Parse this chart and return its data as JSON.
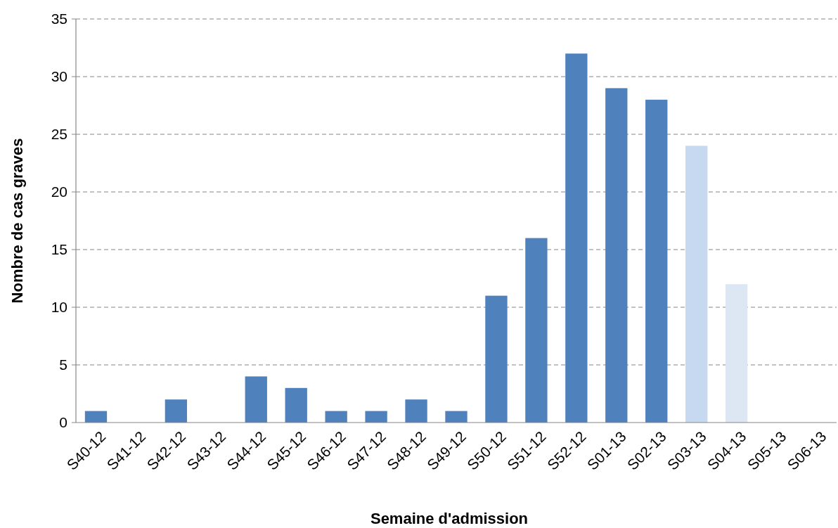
{
  "chart_data": {
    "type": "bar",
    "xlabel": "Semaine d'admission",
    "ylabel": "Nombre de cas graves",
    "categories": [
      "S40-12",
      "S41-12",
      "S42-12",
      "S43-12",
      "S44-12",
      "S45-12",
      "S46-12",
      "S47-12",
      "S48-12",
      "S49-12",
      "S50-12",
      "S51-12",
      "S52-12",
      "S01-13",
      "S02-13",
      "S03-13",
      "S04-13",
      "S05-13",
      "S06-13"
    ],
    "values": [
      1,
      0,
      2,
      0,
      4,
      3,
      1,
      1,
      2,
      1,
      11,
      16,
      32,
      29,
      28,
      24,
      12,
      0,
      0
    ],
    "colors": [
      "#4f81bd",
      "#4f81bd",
      "#4f81bd",
      "#4f81bd",
      "#4f81bd",
      "#4f81bd",
      "#4f81bd",
      "#4f81bd",
      "#4f81bd",
      "#4f81bd",
      "#4f81bd",
      "#4f81bd",
      "#4f81bd",
      "#4f81bd",
      "#4f81bd",
      "#c6d9f1",
      "#dde7f3",
      "#4f81bd",
      "#4f81bd"
    ],
    "ylim": [
      0,
      35
    ],
    "yticks": [
      0,
      5,
      10,
      15,
      20,
      25,
      30,
      35
    ],
    "grid": "y"
  }
}
